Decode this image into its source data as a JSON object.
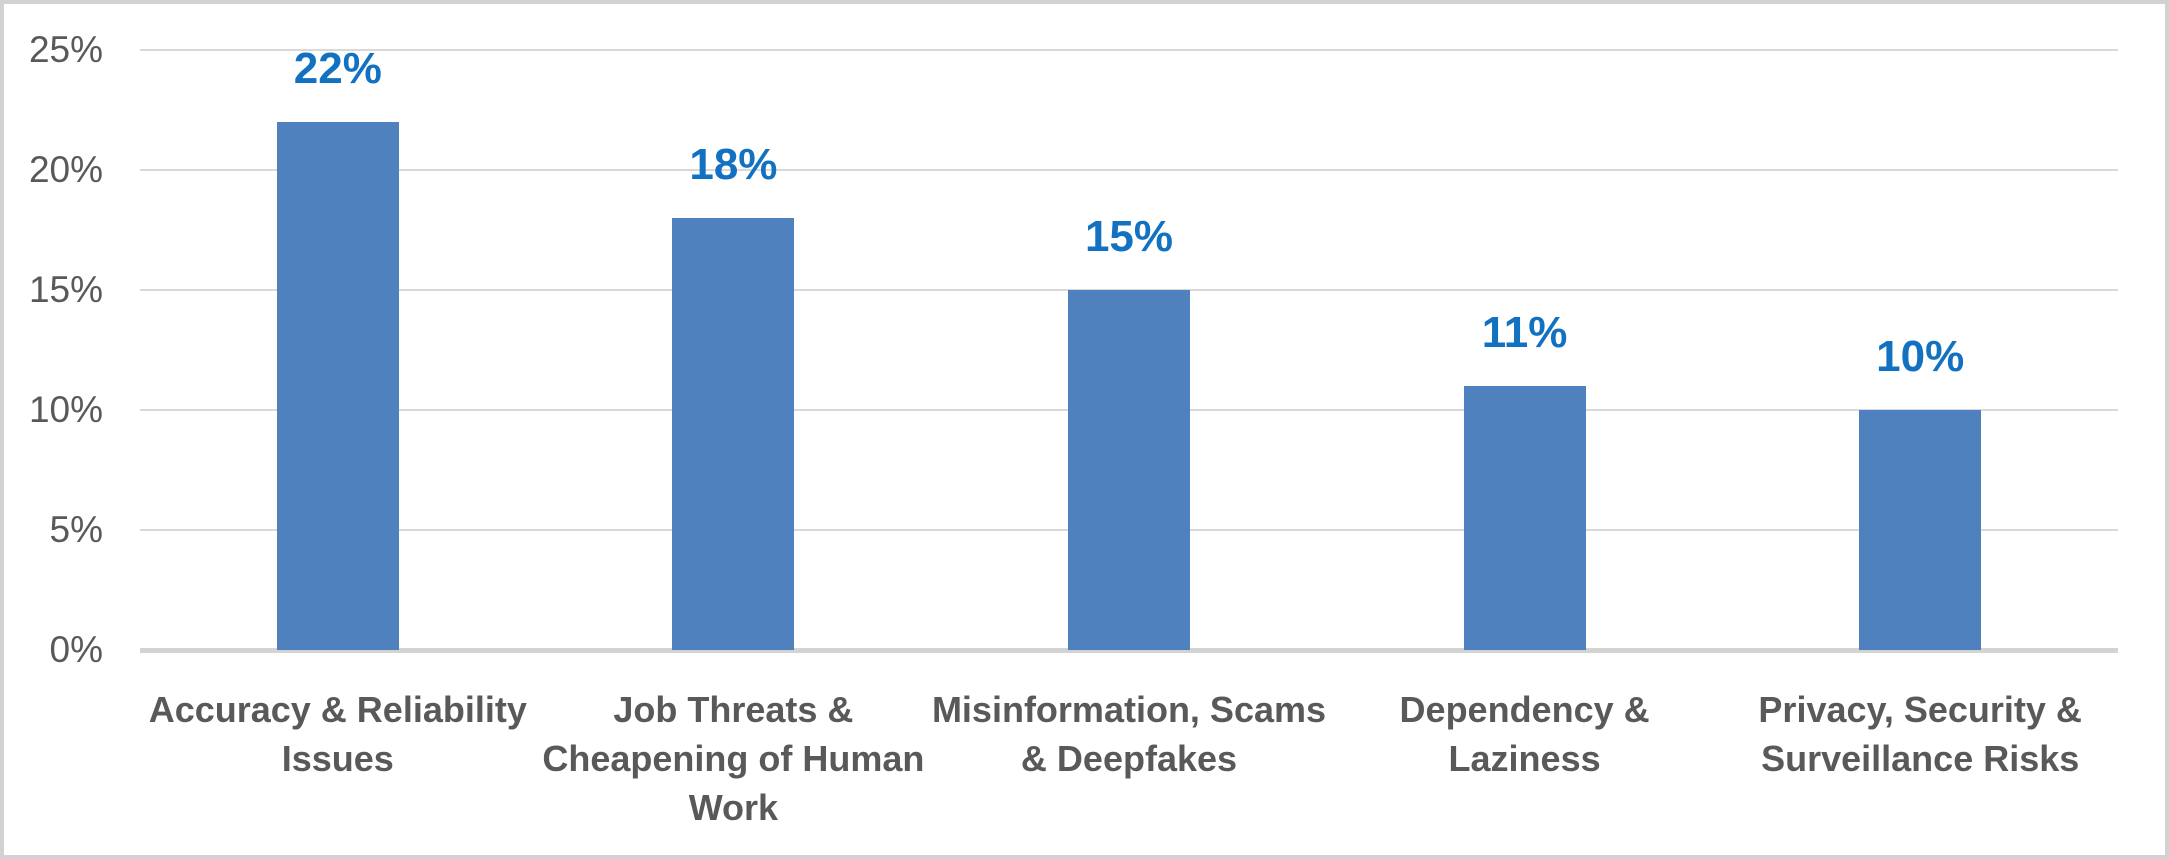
{
  "chart_data": {
    "type": "bar",
    "title": "",
    "categories": [
      "Accuracy & Reliability Issues",
      "Job Threats & Cheapening of Human Work",
      "Misinformation, Scams & Deepfakes",
      "Dependency & Laziness",
      "Privacy, Security & Surveillance Risks"
    ],
    "category_lines": [
      [
        "Accuracy & Reliability",
        "Issues"
      ],
      [
        "Job Threats &",
        "Cheapening of Human",
        "Work"
      ],
      [
        "Misinformation, Scams",
        "& Deepfakes"
      ],
      [
        "Dependency &",
        "Laziness"
      ],
      [
        "Privacy, Security &",
        "Surveillance Risks"
      ]
    ],
    "values": [
      22,
      18,
      15,
      11,
      10
    ],
    "data_labels": [
      "22%",
      "18%",
      "15%",
      "11%",
      "10%"
    ],
    "xlabel": "",
    "ylabel": "",
    "y_axis": {
      "ticks": [
        "0%",
        "5%",
        "10%",
        "15%",
        "20%",
        "25%"
      ],
      "tick_values": [
        0,
        5,
        10,
        15,
        20,
        25
      ],
      "min": 0,
      "max": 25,
      "step": 5
    },
    "grid": true,
    "legend_position": "none",
    "colors": {
      "bar": "#4e81bd",
      "data_label": "#1272c1",
      "axis_text": "#595959",
      "category_text": "#595959",
      "gridline": "#d9d9d9",
      "axis_line": "#d3d3d3",
      "border": "#d2d2d2",
      "background": "#ffffff"
    }
  }
}
